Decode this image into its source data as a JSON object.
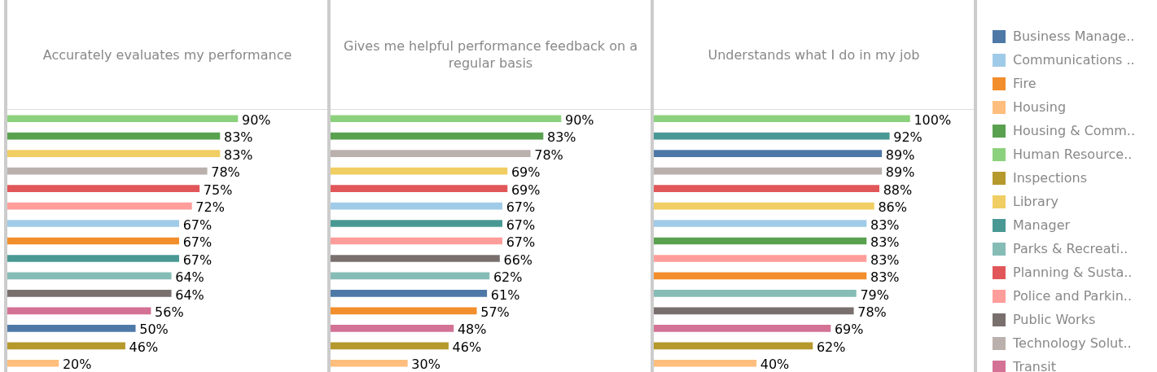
{
  "chart_data": [
    {
      "type": "bar",
      "orientation": "horizontal",
      "title": "Accurately evaluates my performance",
      "categories": [
        null,
        null,
        null,
        null,
        null,
        null,
        null,
        null,
        null,
        null,
        null,
        null,
        null,
        null,
        null
      ],
      "xlim": [
        0,
        125
      ],
      "tick_labels": false,
      "values": [
        90,
        83,
        83,
        78,
        75,
        72,
        67,
        67,
        67,
        64,
        64,
        56,
        50,
        46,
        20
      ],
      "value_labels": [
        "90%",
        "83%",
        "83%",
        "78%",
        "75%",
        "72%",
        "67%",
        "67%",
        "67%",
        "64%",
        "64%",
        "56%",
        "50%",
        "46%",
        "20%"
      ],
      "colors": [
        "#8cd17d",
        "#59a14f",
        "#f1ce63",
        "#bab0ac",
        "#e15759",
        "#ff9d9a",
        "#a0cbe8",
        "#f28e2b",
        "#499894",
        "#86bcb6",
        "#79706e",
        "#d37295",
        "#4e79a7",
        "#b6992d",
        "#ffbe7d"
      ]
    },
    {
      "type": "bar",
      "orientation": "horizontal",
      "title": "Gives me helpful performance feedback on a regular basis",
      "categories": [
        null,
        null,
        null,
        null,
        null,
        null,
        null,
        null,
        null,
        null,
        null,
        null,
        null,
        null,
        null
      ],
      "xlim": [
        0,
        125
      ],
      "tick_labels": false,
      "values": [
        90,
        83,
        78,
        69,
        69,
        67,
        67,
        67,
        66,
        62,
        61,
        57,
        48,
        46,
        30
      ],
      "value_labels": [
        "90%",
        "83%",
        "78%",
        "69%",
        "69%",
        "67%",
        "67%",
        "67%",
        "66%",
        "62%",
        "61%",
        "57%",
        "48%",
        "46%",
        "30%"
      ],
      "colors": [
        "#8cd17d",
        "#59a14f",
        "#bab0ac",
        "#f1ce63",
        "#e15759",
        "#a0cbe8",
        "#499894",
        "#ff9d9a",
        "#79706e",
        "#86bcb6",
        "#4e79a7",
        "#f28e2b",
        "#d37295",
        "#b6992d",
        "#ffbe7d"
      ]
    },
    {
      "type": "bar",
      "orientation": "horizontal",
      "title": "Understands what I do in my job",
      "categories": [
        null,
        null,
        null,
        null,
        null,
        null,
        null,
        null,
        null,
        null,
        null,
        null,
        null,
        null,
        null
      ],
      "xlim": [
        0,
        125
      ],
      "tick_labels": false,
      "values": [
        100,
        92,
        89,
        89,
        88,
        86,
        83,
        83,
        83,
        83,
        79,
        78,
        69,
        62,
        40
      ],
      "value_labels": [
        "100%",
        "92%",
        "89%",
        "89%",
        "88%",
        "86%",
        "83%",
        "83%",
        "83%",
        "83%",
        "79%",
        "78%",
        "69%",
        "62%",
        "40%"
      ],
      "colors": [
        "#8cd17d",
        "#499894",
        "#4e79a7",
        "#bab0ac",
        "#e15759",
        "#f1ce63",
        "#a0cbe8",
        "#59a14f",
        "#ff9d9a",
        "#f28e2b",
        "#86bcb6",
        "#79706e",
        "#d37295",
        "#b6992d",
        "#ffbe7d"
      ]
    },
    {
      "type": "other",
      "categories": [
        "Business Manage..",
        "Communications ..",
        "Fire",
        "Housing",
        "Housing & Comm..",
        "Human Resource..",
        "Inspections",
        "Library",
        "Manager",
        "Parks & Recreati..",
        "Planning & Susta..",
        "Police and Parkin..",
        "Public Works",
        "Technology Solut..",
        "Transit"
      ],
      "colors": [
        "#4e79a7",
        "#a0cbe8",
        "#f28e2b",
        "#ffbe7d",
        "#59a14f",
        "#8cd17d",
        "#b6992d",
        "#f1ce63",
        "#499894",
        "#86bcb6",
        "#e15759",
        "#ff9d9a",
        "#79706e",
        "#bab0ac",
        "#d37295"
      ]
    }
  ]
}
